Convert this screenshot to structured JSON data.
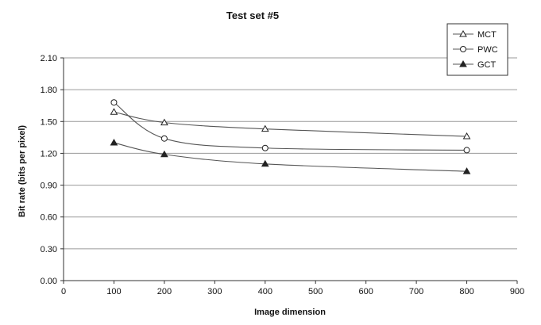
{
  "chart_data": {
    "type": "line",
    "title": "Test set #5",
    "xlabel": "Image dimension",
    "ylabel": "Bit rate (bits per pixel)",
    "xlim": [
      0,
      900
    ],
    "ylim": [
      0,
      2.1
    ],
    "xticks": [
      "0",
      "100",
      "200",
      "300",
      "400",
      "500",
      "600",
      "700",
      "800",
      "900"
    ],
    "yticks": [
      "0.00",
      "0.30",
      "0.60",
      "0.90",
      "1.20",
      "1.50",
      "1.80",
      "2.10"
    ],
    "grid": "horizontal",
    "legend_position": "top-right",
    "series": [
      {
        "name": "MCT",
        "marker": "open-triangle",
        "x": [
          100,
          200,
          400,
          800
        ],
        "y": [
          1.59,
          1.49,
          1.43,
          1.36
        ]
      },
      {
        "name": "PWC",
        "marker": "open-circle",
        "x": [
          100,
          200,
          400,
          800
        ],
        "y": [
          1.68,
          1.34,
          1.25,
          1.23
        ]
      },
      {
        "name": "GCT",
        "marker": "filled-triangle",
        "x": [
          100,
          200,
          400,
          800
        ],
        "y": [
          1.3,
          1.19,
          1.1,
          1.03
        ]
      }
    ],
    "colors": {
      "line": "#555555",
      "grid": "#9a9a9a",
      "axis": "#333333",
      "marker": "#222222"
    }
  }
}
